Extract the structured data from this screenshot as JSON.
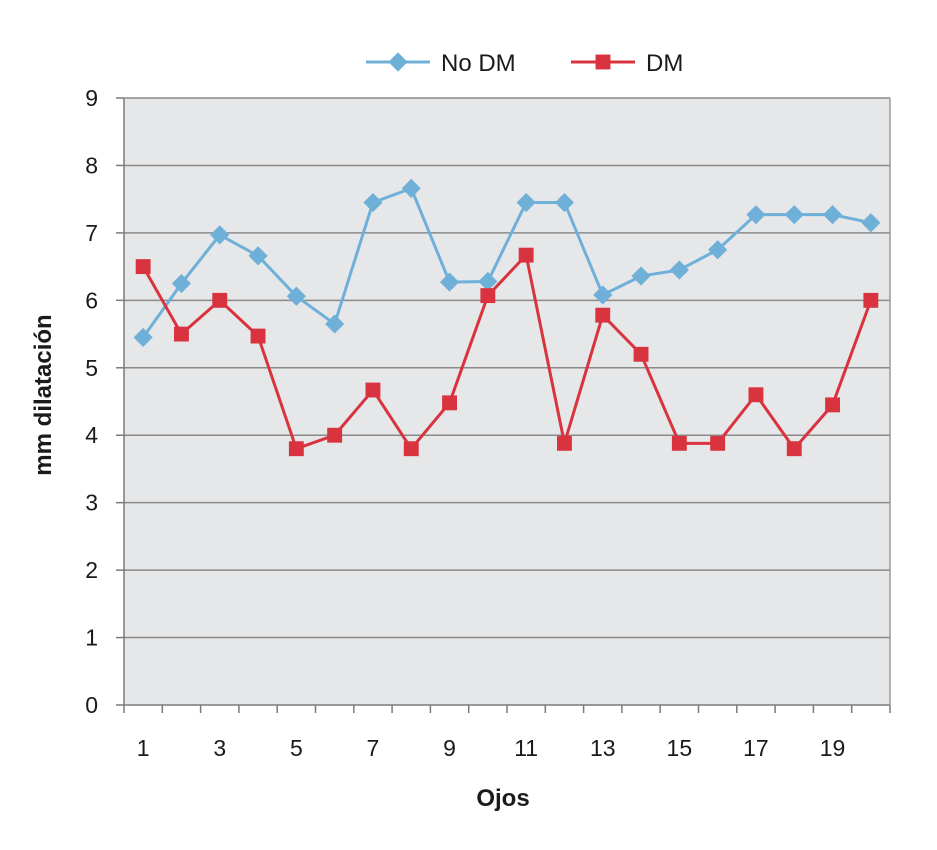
{
  "chart_data": {
    "type": "line",
    "title": "",
    "xlabel": "Ojos",
    "ylabel": "mm dilatación",
    "x": [
      1,
      2,
      3,
      4,
      5,
      6,
      7,
      8,
      9,
      10,
      11,
      12,
      13,
      14,
      15,
      16,
      17,
      18,
      19,
      20
    ],
    "x_tick_labels": [
      "1",
      "3",
      "5",
      "7",
      "9",
      "11",
      "13",
      "15",
      "17",
      "19"
    ],
    "y_tick_labels": [
      "0",
      "1",
      "2",
      "3",
      "4",
      "5",
      "6",
      "7",
      "8",
      "9"
    ],
    "ylim": [
      0,
      9
    ],
    "grid": "horizontal",
    "plot_background": "#e6e7e8",
    "legend_position": "top",
    "series": [
      {
        "name": "No DM",
        "color": "#6fb0d9",
        "marker": "diamond",
        "values": [
          5.45,
          6.25,
          6.97,
          6.66,
          6.06,
          5.65,
          7.45,
          7.66,
          6.27,
          6.28,
          7.45,
          7.45,
          6.08,
          6.36,
          6.45,
          6.75,
          7.27,
          7.27,
          7.27,
          7.15
        ]
      },
      {
        "name": "DM",
        "color": "#d9333f",
        "marker": "square",
        "values": [
          6.5,
          5.5,
          6.0,
          5.47,
          3.8,
          4.0,
          4.67,
          3.8,
          4.48,
          6.07,
          6.67,
          3.88,
          5.78,
          5.2,
          3.88,
          3.88,
          4.6,
          3.8,
          4.45,
          6.0
        ]
      }
    ]
  }
}
